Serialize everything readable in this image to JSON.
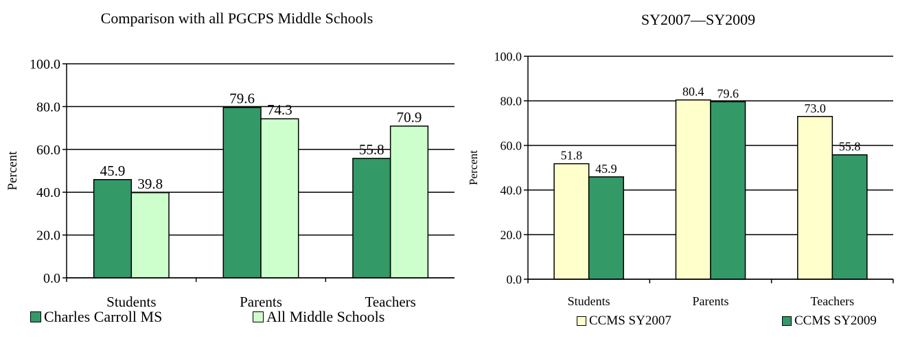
{
  "chart_data": [
    {
      "type": "bar",
      "title": "Comparison with all PGCPS Middle Schools",
      "ylabel": "Percent",
      "xlabel": "",
      "categories": [
        "Students",
        "Parents",
        "Teachers"
      ],
      "ylim": [
        0,
        100
      ],
      "yticks": [
        "0.0",
        "20.0",
        "40.0",
        "60.0",
        "80.0",
        "100.0"
      ],
      "grid": true,
      "legend_position": "bottom",
      "series": [
        {
          "name": "Charles Carroll MS",
          "color": "#339966",
          "values": [
            45.9,
            79.6,
            55.8
          ],
          "labels": [
            "45.9",
            "79.6",
            "55.8"
          ]
        },
        {
          "name": "All Middle Schools",
          "color": "#CCFFCC",
          "values": [
            39.8,
            74.3,
            70.9
          ],
          "labels": [
            "39.8",
            "74.3",
            "70.9"
          ]
        }
      ]
    },
    {
      "type": "bar",
      "title": "SY2007—SY2009",
      "ylabel": "Percent",
      "xlabel": "",
      "categories": [
        "Students",
        "Parents",
        "Teachers"
      ],
      "ylim": [
        0,
        100
      ],
      "yticks": [
        "0.0",
        "20.0",
        "40.0",
        "60.0",
        "80.0",
        "100.0"
      ],
      "grid": true,
      "legend_position": "bottom",
      "series": [
        {
          "name": "CCMS SY2007",
          "color": "#FFFFCC",
          "values": [
            51.8,
            80.4,
            73.0
          ],
          "labels": [
            "51.8",
            "80.4",
            "73.0"
          ]
        },
        {
          "name": "CCMS SY2009",
          "color": "#339966",
          "values": [
            45.9,
            79.6,
            55.8
          ],
          "labels": [
            "45.9",
            "79.6",
            "55.8"
          ]
        }
      ]
    }
  ]
}
